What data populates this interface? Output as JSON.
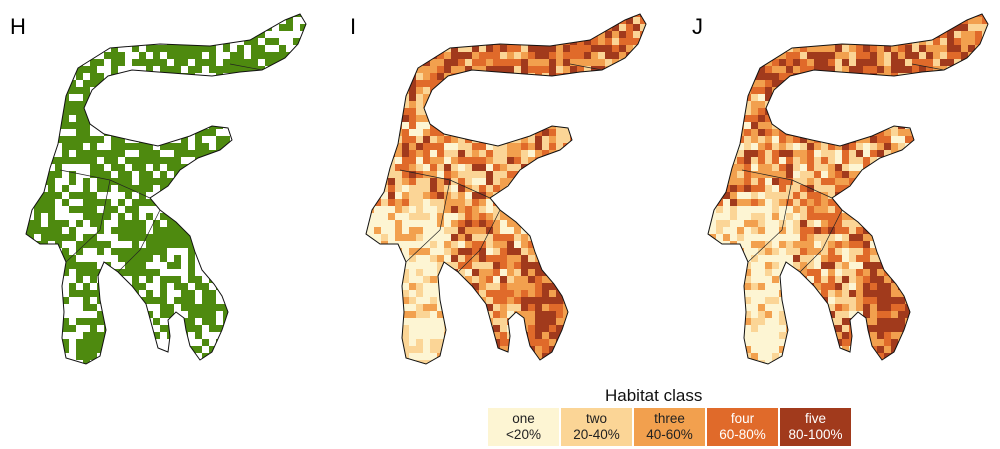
{
  "panels": [
    {
      "label": "H",
      "kind": "forest",
      "color": "#4e8a0f"
    },
    {
      "label": "I",
      "kind": "habitat"
    },
    {
      "label": "J",
      "kind": "habitat"
    }
  ],
  "legend": {
    "title": "Habitat class",
    "classes": [
      {
        "name": "one",
        "range": "<20%",
        "color": "#fdf5d3",
        "text_color": "#222222"
      },
      {
        "name": "two",
        "range": "20-40%",
        "color": "#fbd596",
        "text_color": "#222222"
      },
      {
        "name": "three",
        "range": "40-60%",
        "color": "#f2a04e",
        "text_color": "#222222"
      },
      {
        "name": "four",
        "range": "60-80%",
        "color": "#e06a2a",
        "text_color": "#ffffff"
      },
      {
        "name": "five",
        "range": "80-100%",
        "color": "#a13a1c",
        "text_color": "#ffffff"
      }
    ]
  }
}
